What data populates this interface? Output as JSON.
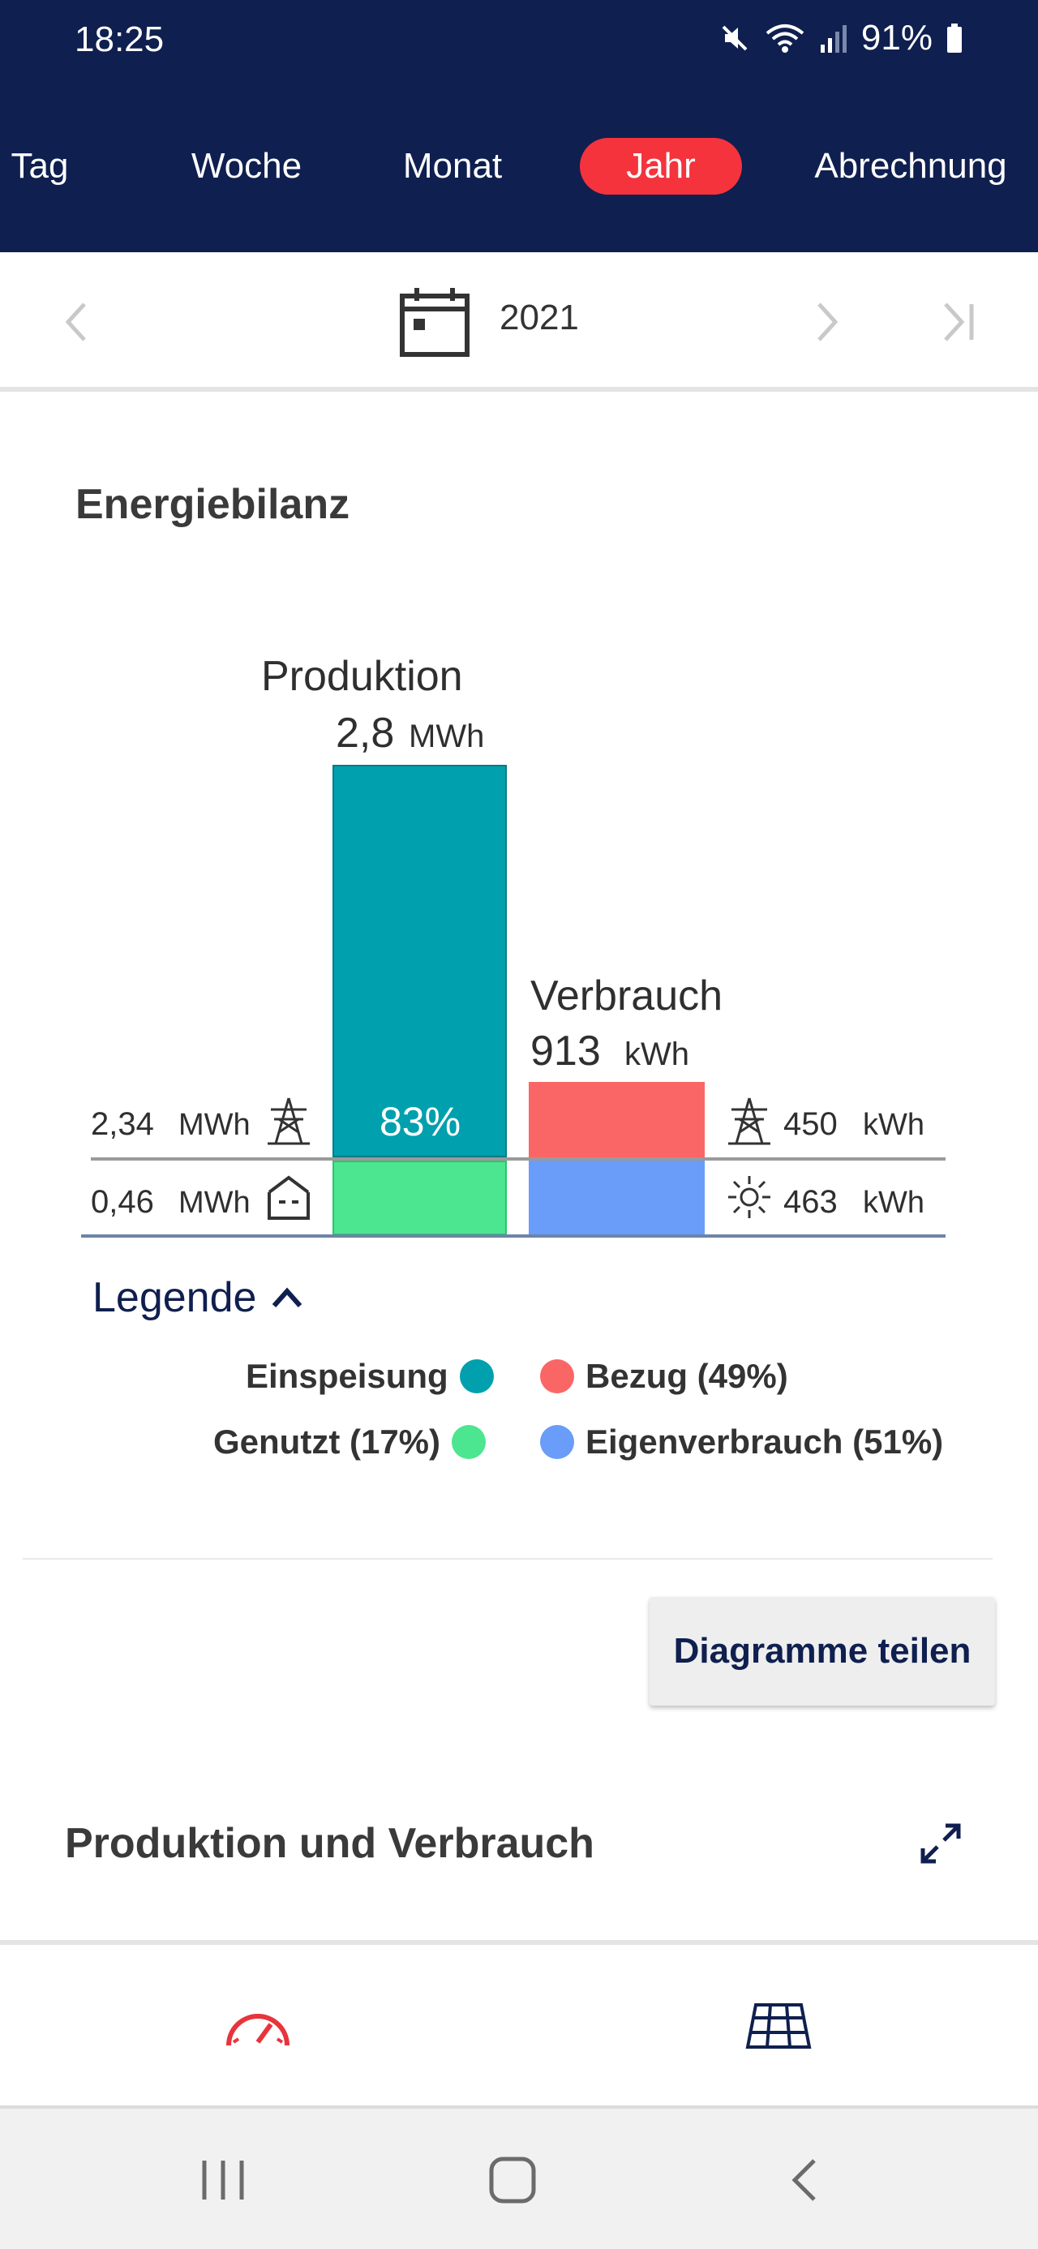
{
  "status_bar": {
    "time": "18:25",
    "battery": "91%"
  },
  "tabs": [
    {
      "label": "Tag",
      "active": false
    },
    {
      "label": "Woche",
      "active": false
    },
    {
      "label": "Monat",
      "active": false
    },
    {
      "label": "Jahr",
      "active": true
    },
    {
      "label": "Abrechnung",
      "active": false
    }
  ],
  "date_nav": {
    "year": "2021"
  },
  "energy_balance": {
    "title": "Energiebilanz",
    "chart_data": {
      "type": "bar",
      "bars": [
        {
          "name": "Produktion",
          "total_value": "2,8",
          "total_unit": "MWh",
          "segments": [
            {
              "label": "Einspeisung",
              "value": 2.34,
              "unit": "MWh",
              "percent_label": "83%",
              "color": "#00a0ae"
            },
            {
              "label": "Genutzt",
              "value": 0.46,
              "unit": "MWh",
              "color": "#4ce690"
            }
          ]
        },
        {
          "name": "Verbrauch",
          "total_value": "913",
          "total_unit": "kWh",
          "segments": [
            {
              "label": "Bezug",
              "value": 450,
              "unit": "kWh",
              "color": "#fa6666"
            },
            {
              "label": "Eigenverbrauch",
              "value": 463,
              "unit": "kWh",
              "color": "#6a9cf9"
            }
          ]
        }
      ],
      "left_values": [
        {
          "value": "2,34",
          "unit": "MWh",
          "icon": "power-tower-icon"
        },
        {
          "value": "0,46",
          "unit": "MWh",
          "icon": "house-icon"
        }
      ],
      "right_values": [
        {
          "value": "450",
          "unit": "kWh",
          "icon": "power-tower-icon"
        },
        {
          "value": "463",
          "unit": "kWh",
          "icon": "sun-icon"
        }
      ]
    },
    "legend_toggle": "Legende",
    "legend": [
      {
        "label": "Einspeisung",
        "color": "#00a0ae"
      },
      {
        "label": "Bezug (49%)",
        "color": "#fa6666"
      },
      {
        "label": "Genutzt (17%)",
        "color": "#4ce690"
      },
      {
        "label": "Eigenverbrauch (51%)",
        "color": "#6a9cf9"
      }
    ]
  },
  "share_button": "Diagramme teilen",
  "section2": {
    "title": "Produktion und Verbrauch"
  },
  "bottom_nav": [
    {
      "icon": "dashboard-gauge-icon",
      "color": "#e8343c"
    },
    {
      "icon": "solar-panel-icon",
      "color": "#0f1f4f"
    }
  ],
  "colors": {
    "brand": "#0f1f4f",
    "accent": "#f4333c"
  }
}
